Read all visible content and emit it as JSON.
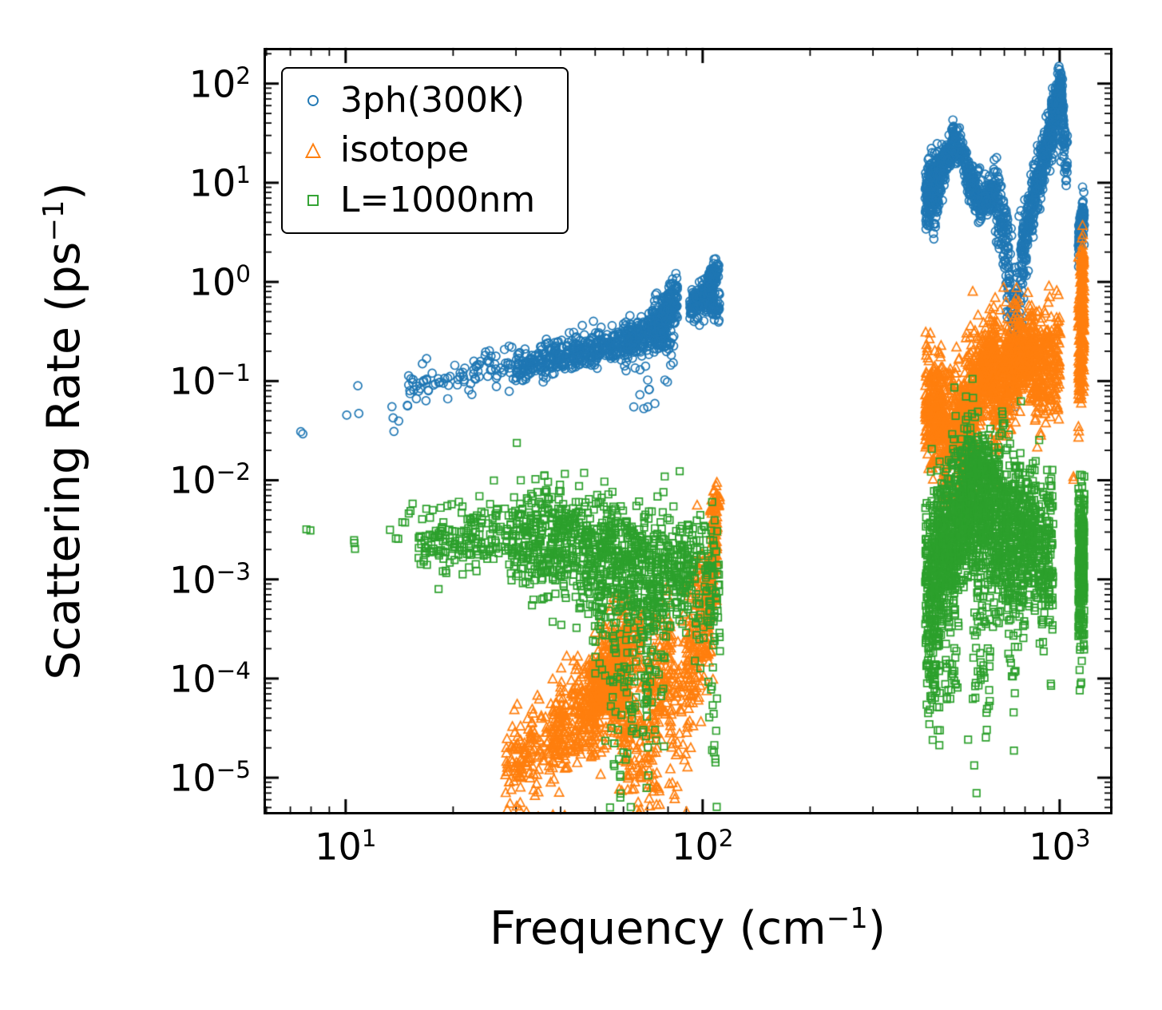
{
  "figure": {
    "background": "#ffffff"
  },
  "axes": {
    "xlabel": {
      "prefix": "Frequency (cm",
      "sup": "−1",
      "suffix": ")"
    },
    "ylabel": {
      "prefix": "Scattering Rate (ps",
      "sup": "−1",
      "suffix": ")"
    },
    "tick_label_base": "10",
    "x_tick_exponents": [
      1,
      2,
      3
    ],
    "y_tick_exponents": [
      -5,
      -4,
      -3,
      -2,
      -1,
      0,
      1,
      2
    ],
    "x_log_range": [
      0.77,
      3.148
    ],
    "y_log_range": [
      -5.37,
      2.36
    ]
  },
  "legend": {
    "location": "upper left",
    "items": [
      {
        "label": "3ph(300K)",
        "marker": "circle",
        "color": "#1f77b4"
      },
      {
        "label": "isotope",
        "marker": "triangle",
        "color": "#ff7f0e"
      },
      {
        "label": "L=1000nm",
        "marker": "square",
        "color": "#2ca02c"
      }
    ]
  },
  "chart_data": {
    "type": "scatter",
    "title": "",
    "xlabel": "Frequency (cm⁻¹)",
    "ylabel": "Scattering Rate (ps⁻¹)",
    "x_scale": "log",
    "y_scale": "log",
    "xlim": [
      5.9,
      1405
    ],
    "ylim": [
      4.3e-06,
      230.0
    ],
    "grid": false,
    "band_format": [
      "x_min",
      "x_max",
      "y_at_xmin",
      "y_at_xmax",
      "log10_scatter_sd",
      "n_points"
    ],
    "series": [
      {
        "name": "3ph(300K)",
        "marker": "circle",
        "color": "#1f77b4",
        "bands": [
          [
            7,
            7.6,
            0.028,
            0.034,
            0.04,
            2
          ],
          [
            10,
            11,
            0.03,
            0.055,
            0.22,
            3
          ],
          [
            13,
            15.5,
            0.042,
            0.07,
            0.12,
            6
          ],
          [
            15,
            30,
            0.085,
            0.14,
            0.1,
            90
          ],
          [
            30,
            60,
            0.14,
            0.24,
            0.085,
            380
          ],
          [
            60,
            80,
            0.24,
            0.36,
            0.095,
            280
          ],
          [
            63,
            75,
            0.07,
            0.12,
            0.18,
            9
          ],
          [
            68,
            72,
            0.05,
            0.055,
            0.05,
            2
          ],
          [
            72,
            85,
            0.32,
            0.7,
            0.12,
            220
          ],
          [
            78,
            84,
            0.16,
            0.55,
            0.28,
            30
          ],
          [
            92,
            108,
            0.55,
            0.85,
            0.09,
            190
          ],
          [
            103,
            111,
            0.95,
            1.35,
            0.08,
            60
          ],
          [
            106,
            112,
            0.45,
            0.6,
            0.07,
            30
          ],
          [
            420,
            460,
            6.5,
            10,
            0.17,
            230
          ],
          [
            428,
            452,
            11.5,
            15,
            0.09,
            40
          ],
          [
            460,
            510,
            12,
            28,
            0.11,
            130
          ],
          [
            500,
            545,
            28,
            17,
            0.11,
            80
          ],
          [
            545,
            600,
            13,
            6.5,
            0.11,
            130
          ],
          [
            600,
            660,
            6.2,
            8.5,
            0.09,
            130
          ],
          [
            660,
            720,
            8,
            2.2,
            0.22,
            100
          ],
          [
            700,
            752,
            1.6,
            0.27,
            0.28,
            60
          ],
          [
            742,
            792,
            0.32,
            1.6,
            0.28,
            60
          ],
          [
            780,
            852,
            1.6,
            8,
            0.18,
            130
          ],
          [
            850,
            960,
            8,
            40,
            0.14,
            220
          ],
          [
            948,
            1012,
            40,
            95,
            0.12,
            160
          ],
          [
            990,
            1022,
            95,
            55,
            0.14,
            60
          ],
          [
            1008,
            1052,
            48,
            14,
            0.18,
            60
          ],
          [
            1128,
            1172,
            2.6,
            5.4,
            0.11,
            100
          ]
        ]
      },
      {
        "name": "isotope",
        "marker": "triangle",
        "color": "#ff7f0e",
        "bands": [
          [
            28,
            40,
            1.2e-05,
            3e-05,
            0.22,
            150
          ],
          [
            38,
            52,
            2.6e-05,
            7e-05,
            0.28,
            260
          ],
          [
            48,
            62,
            6e-05,
            0.00014,
            0.28,
            360
          ],
          [
            55,
            68,
            0.00016,
            0.00026,
            0.22,
            120
          ],
          [
            58,
            76,
            3e-05,
            1.2e-05,
            0.38,
            150
          ],
          [
            70,
            82,
            8e-05,
            0.00018,
            0.32,
            120
          ],
          [
            80,
            92,
            3.5e-05,
            8e-05,
            0.38,
            60
          ],
          [
            90,
            101,
            9e-05,
            0.0008,
            0.42,
            130
          ],
          [
            102,
            110,
            0.0003,
            0.004,
            0.33,
            170
          ],
          [
            104,
            112,
            0.005,
            0.0064,
            0.05,
            25
          ],
          [
            420,
            470,
            0.042,
            0.06,
            0.26,
            290
          ],
          [
            470,
            520,
            0.022,
            0.04,
            0.3,
            160
          ],
          [
            520,
            565,
            0.032,
            0.06,
            0.33,
            170
          ],
          [
            560,
            600,
            0.05,
            0.1,
            0.3,
            150
          ],
          [
            600,
            660,
            0.1,
            0.17,
            0.24,
            210
          ],
          [
            650,
            700,
            0.065,
            0.12,
            0.33,
            130
          ],
          [
            700,
            770,
            0.1,
            0.2,
            0.28,
            210
          ],
          [
            770,
            850,
            0.15,
            0.22,
            0.21,
            210
          ],
          [
            850,
            950,
            0.12,
            0.18,
            0.28,
            160
          ],
          [
            950,
            1005,
            0.1,
            0.15,
            0.28,
            70
          ],
          [
            1090,
            1110,
            0.01,
            0.011,
            0.05,
            2
          ],
          [
            1128,
            1172,
            0.2,
            0.55,
            0.42,
            220
          ],
          [
            1148,
            1168,
            1.1,
            1.9,
            0.1,
            30
          ]
        ]
      },
      {
        "name": "L=1000nm",
        "marker": "square",
        "color": "#2ca02c",
        "bands": [
          [
            7,
            8,
            0.0029,
            0.0031,
            0.03,
            2
          ],
          [
            10,
            11,
            0.0022,
            0.0032,
            0.1,
            3
          ],
          [
            13,
            16,
            0.003,
            0.0046,
            0.13,
            8
          ],
          [
            16,
            30,
            0.0023,
            0.003,
            0.18,
            190
          ],
          [
            30,
            45,
            0.0026,
            0.0022,
            0.28,
            310
          ],
          [
            45,
            80,
            0.002,
            0.0012,
            0.3,
            470
          ],
          [
            50,
            80,
            0.00042,
            0.00026,
            0.42,
            150
          ],
          [
            55,
            78,
            8e-05,
            4e-05,
            0.48,
            60
          ],
          [
            80,
            95,
            0.0012,
            0.0015,
            0.28,
            130
          ],
          [
            95,
            112,
            0.001,
            0.0008,
            0.33,
            90
          ],
          [
            103,
            110,
            0.00011,
            3e-05,
            0.38,
            20
          ],
          [
            420,
            470,
            0.0009,
            0.0016,
            0.38,
            310
          ],
          [
            424,
            462,
            9e-05,
            0.00016,
            0.38,
            60
          ],
          [
            470,
            520,
            0.002,
            0.0036,
            0.38,
            260
          ],
          [
            478,
            522,
            0.0002,
            0.0003,
            0.38,
            40
          ],
          [
            520,
            570,
            0.004,
            0.007,
            0.33,
            260
          ],
          [
            548,
            562,
            2.4e-05,
            2.6e-05,
            0.04,
            1
          ],
          [
            560,
            660,
            0.013,
            0.015,
            0.12,
            60
          ],
          [
            560,
            650,
            0.006,
            0.005,
            0.38,
            310
          ],
          [
            570,
            640,
            0.0003,
            0.0002,
            0.48,
            60
          ],
          [
            575,
            590,
            1.4e-05,
            1.5e-05,
            0.03,
            1
          ],
          [
            650,
            710,
            0.003,
            0.003,
            0.42,
            190
          ],
          [
            686,
            702,
            0.032,
            0.044,
            0.09,
            6
          ],
          [
            710,
            780,
            0.003,
            0.004,
            0.38,
            190
          ],
          [
            718,
            772,
            0.0002,
            0.00015,
            0.38,
            25
          ],
          [
            780,
            860,
            0.0025,
            0.003,
            0.33,
            190
          ],
          [
            860,
            960,
            0.0015,
            0.002,
            0.38,
            160
          ],
          [
            938,
            962,
            8e-05,
            9e-05,
            0.08,
            2
          ],
          [
            1128,
            1172,
            0.0011,
            0.0016,
            0.38,
            260
          ],
          [
            1135,
            1150,
            8e-05,
            9e-05,
            0.05,
            2
          ]
        ]
      }
    ]
  }
}
